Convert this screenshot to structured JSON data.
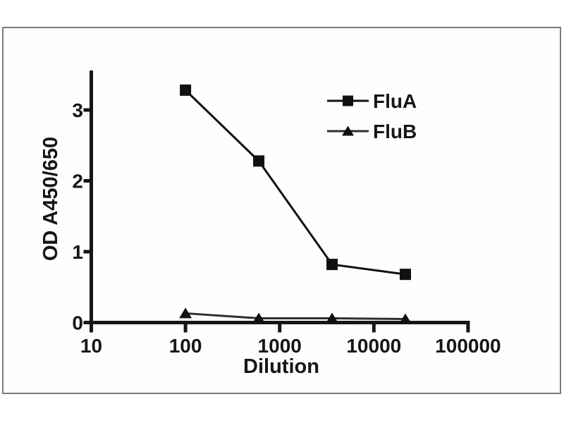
{
  "figure": {
    "background_color": "#ffffff",
    "panel_border_color": "#7b7b7b",
    "axis_color": "#161616"
  },
  "chart_data": {
    "type": "line",
    "title": "",
    "xlabel": "Dilution",
    "ylabel": "OD A450/650",
    "x_scale": "log",
    "xlim": [
      10,
      100000
    ],
    "x_ticks": [
      10,
      100,
      1000,
      10000,
      100000
    ],
    "x_tick_labels": [
      "10",
      "100",
      "1000",
      "10000",
      "100000"
    ],
    "ylim": [
      0,
      3.54
    ],
    "y_ticks": [
      0,
      1,
      2,
      3
    ],
    "y_tick_labels": [
      "0",
      "1",
      "2",
      "3"
    ],
    "grid": false,
    "legend_position": "upper-right-inside",
    "x": [
      100,
      600,
      3600,
      21600
    ],
    "series": [
      {
        "name": "FluA",
        "marker": "square",
        "line_color": "#111111",
        "marker_color": "#111111",
        "values": [
          3.28,
          2.28,
          0.82,
          0.68
        ]
      },
      {
        "name": "FluB",
        "marker": "triangle",
        "line_color": "#2e2e2e",
        "marker_color": "#111111",
        "values": [
          0.13,
          0.06,
          0.06,
          0.05
        ]
      }
    ]
  }
}
